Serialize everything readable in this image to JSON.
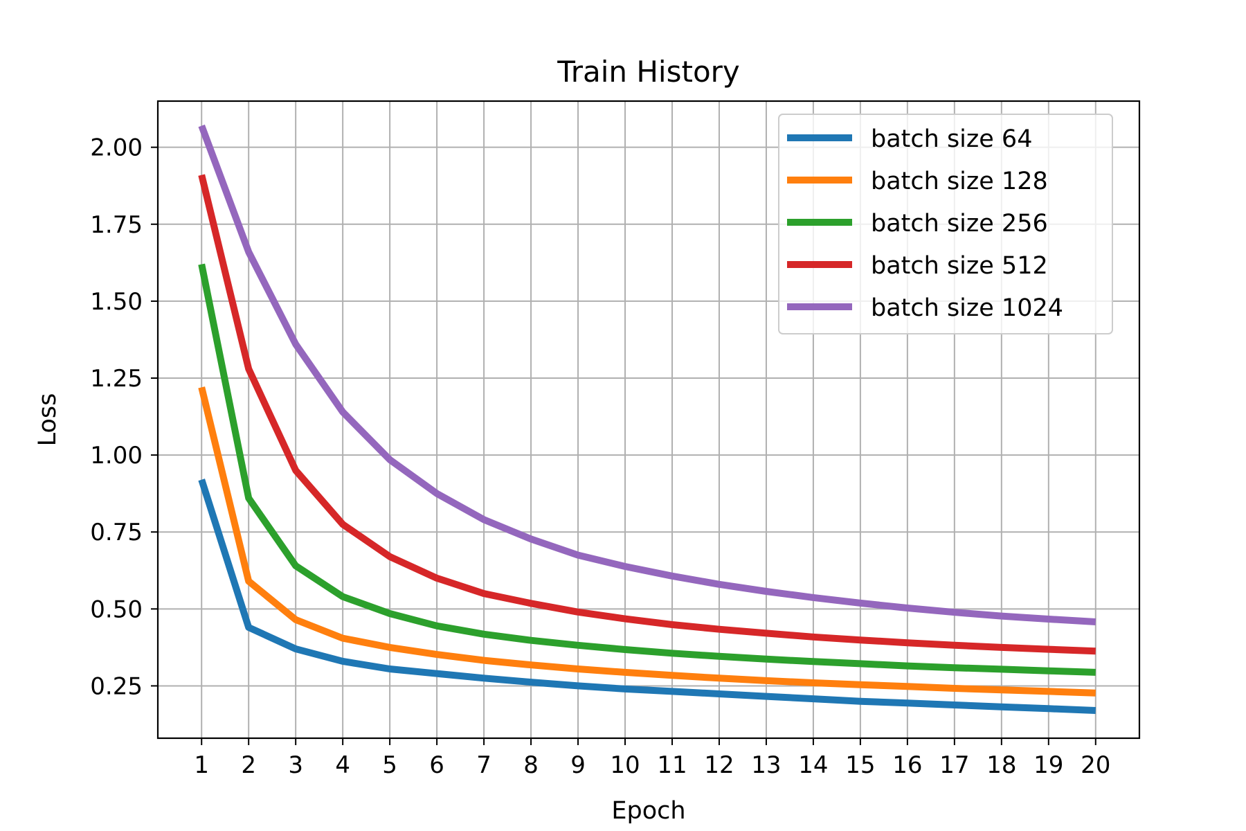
{
  "chart_data": {
    "type": "line",
    "title": "Train History",
    "xlabel": "Epoch",
    "ylabel": "Loss",
    "x": [
      1,
      2,
      3,
      4,
      5,
      6,
      7,
      8,
      9,
      10,
      11,
      12,
      13,
      14,
      15,
      16,
      17,
      18,
      19,
      20
    ],
    "x_ticks": [
      "1",
      "2",
      "3",
      "4",
      "5",
      "6",
      "7",
      "8",
      "9",
      "10",
      "11",
      "12",
      "13",
      "14",
      "15",
      "16",
      "17",
      "18",
      "19",
      "20"
    ],
    "y_ticks": [
      "0.25",
      "0.50",
      "0.75",
      "1.00",
      "1.25",
      "1.50",
      "1.75",
      "2.00"
    ],
    "xlim": [
      0.07,
      20.93
    ],
    "ylim": [
      0.08,
      2.15
    ],
    "grid": true,
    "legend_position": "upper-right",
    "series": [
      {
        "name": "batch size 64",
        "color": "#1f77b4",
        "values": [
          0.92,
          0.44,
          0.37,
          0.33,
          0.305,
          0.29,
          0.275,
          0.262,
          0.25,
          0.24,
          0.232,
          0.224,
          0.216,
          0.208,
          0.2,
          0.194,
          0.188,
          0.182,
          0.176,
          0.17
        ]
      },
      {
        "name": "batch size 128",
        "color": "#ff7f0e",
        "values": [
          1.22,
          0.59,
          0.465,
          0.405,
          0.375,
          0.352,
          0.333,
          0.318,
          0.305,
          0.294,
          0.284,
          0.275,
          0.267,
          0.26,
          0.254,
          0.248,
          0.242,
          0.237,
          0.232,
          0.227
        ]
      },
      {
        "name": "batch size 256",
        "color": "#2ca02c",
        "values": [
          1.62,
          0.86,
          0.64,
          0.54,
          0.485,
          0.445,
          0.418,
          0.398,
          0.382,
          0.368,
          0.356,
          0.346,
          0.337,
          0.329,
          0.322,
          0.315,
          0.309,
          0.304,
          0.299,
          0.294
        ]
      },
      {
        "name": "batch size 512",
        "color": "#d62728",
        "values": [
          1.91,
          1.28,
          0.95,
          0.775,
          0.67,
          0.6,
          0.55,
          0.518,
          0.49,
          0.468,
          0.449,
          0.434,
          0.421,
          0.409,
          0.399,
          0.39,
          0.382,
          0.375,
          0.369,
          0.363
        ]
      },
      {
        "name": "batch size 1024",
        "color": "#9467bd",
        "values": [
          2.07,
          1.66,
          1.36,
          1.14,
          0.985,
          0.875,
          0.79,
          0.727,
          0.675,
          0.638,
          0.607,
          0.58,
          0.557,
          0.537,
          0.519,
          0.503,
          0.489,
          0.477,
          0.467,
          0.458
        ]
      }
    ]
  }
}
